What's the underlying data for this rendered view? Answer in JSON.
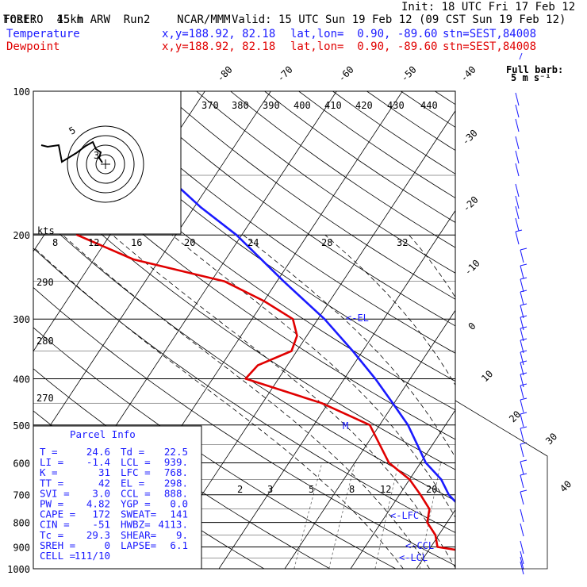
{
  "header": {
    "model_name": "TORERO",
    "resolution": "15km ARW",
    "run": "Run2",
    "org": "NCAR/MMM",
    "init": "Init: 18 UTC Fri 17 Feb 12",
    "fcst_label": "Fcst:",
    "fcst_value": "45 h",
    "valid": "Valid: 15 UTC Sun 19 Feb 12 (09 CST Sun 19 Feb 12)",
    "temp_label": "Temperature",
    "dew_label": "Dewpoint",
    "loc_xy": "x,y=188.92, 82.18",
    "loc_latlon": "lat,lon=  0.90, -89.60",
    "loc_stn": "stn=SEST,84008"
  },
  "barb_legend": {
    "line1": "Full barb:",
    "line2": "5 m s⁻¹"
  },
  "hodograph": {
    "units": "kts",
    "ring_labels": [
      "3",
      "5"
    ]
  },
  "labels": {
    "el": "<-EL",
    "lfc": "<-LFC",
    "ccl": "<-CCL",
    "lcl": "<-LCL",
    "m": "M"
  },
  "parcel_info": {
    "title": "Parcel Info",
    "rows": [
      [
        "T  =",
        "24.6",
        "Td =",
        "22.5"
      ],
      [
        "LI =",
        "-1.4",
        "LCL =",
        "939."
      ],
      [
        "K  =",
        "31",
        "LFC =",
        "768."
      ],
      [
        "TT =",
        "42",
        "EL =",
        "298."
      ],
      [
        "SVI =",
        "3.0",
        "CCL =",
        "888."
      ],
      [
        "PW =",
        "4.82",
        "YGP =",
        "0.0"
      ],
      [
        "CAPE =",
        "172",
        "SWEAT=",
        "141"
      ],
      [
        "CIN =",
        "-51",
        "HWBZ=",
        "4113."
      ],
      [
        "Tc =",
        "29.3",
        "SHEAR=",
        "9."
      ],
      [
        "SREH =",
        "0",
        "LAPSE=",
        "6.1"
      ],
      [
        "CELL =",
        "111/10",
        "",
        ""
      ]
    ]
  },
  "chart_data": {
    "type": "line",
    "title": "",
    "xlabel": "",
    "ylabel": "",
    "pressure_ticks": [
      100,
      200,
      300,
      400,
      500,
      600,
      700,
      800,
      900,
      1000
    ],
    "temp_ticks": [
      "-80",
      "-70",
      "-60",
      "-50",
      "-40",
      "-30",
      "-20",
      "-10",
      "0",
      "10",
      "20",
      "30",
      "40"
    ],
    "theta_labels": [
      "370",
      "380",
      "390",
      "400",
      "410",
      "420",
      "430",
      "440"
    ],
    "theta_left_labels": [
      "290",
      "280",
      "270"
    ],
    "mixing_ratio_labels": [
      "2",
      "3",
      "5",
      "8",
      "12",
      "20"
    ],
    "theta_e_labels": [
      "8",
      "12",
      "16",
      "20",
      "24",
      "28",
      "32"
    ],
    "series": [
      {
        "name": "Temperature",
        "color": "#1a1aff",
        "pressure": [
          1000,
          970,
          950,
          925,
          900,
          850,
          800,
          750,
          700,
          650,
          600,
          550,
          500,
          450,
          400,
          350,
          300,
          250,
          200,
          175,
          150,
          125,
          110,
          100
        ],
        "temperature": [
          24.6,
          22.5,
          22.0,
          21.3,
          19.8,
          17.0,
          13.5,
          11.0,
          7.5,
          4.8,
          0.8,
          -2.3,
          -5.7,
          -10.2,
          -15.3,
          -21.5,
          -29.0,
          -39.0,
          -50.8,
          -59.0,
          -67.5,
          -77.5,
          -80.5,
          -79.0
        ]
      },
      {
        "name": "Dewpoint",
        "color": "#e00000",
        "pressure": [
          1000,
          970,
          950,
          925,
          900,
          850,
          800,
          750,
          700,
          650,
          600,
          550,
          500,
          450,
          400,
          375,
          350,
          325,
          300,
          275,
          250,
          225,
          200,
          175,
          150,
          125,
          100
        ],
        "temperature": [
          22.5,
          21.5,
          20.3,
          17.0,
          11.0,
          9.5,
          7.0,
          6.0,
          3.2,
          0.0,
          -4.8,
          -8.0,
          -11.5,
          -21.0,
          -35.0,
          -34.5,
          -30.8,
          -31.5,
          -33.8,
          -40.0,
          -48.0,
          -64.0,
          -75.0,
          -77.0,
          -85.0,
          -86.0,
          -88.0
        ]
      }
    ],
    "wind_barbs_note": "winds shown along right side",
    "ylim": [
      1000,
      100
    ]
  }
}
